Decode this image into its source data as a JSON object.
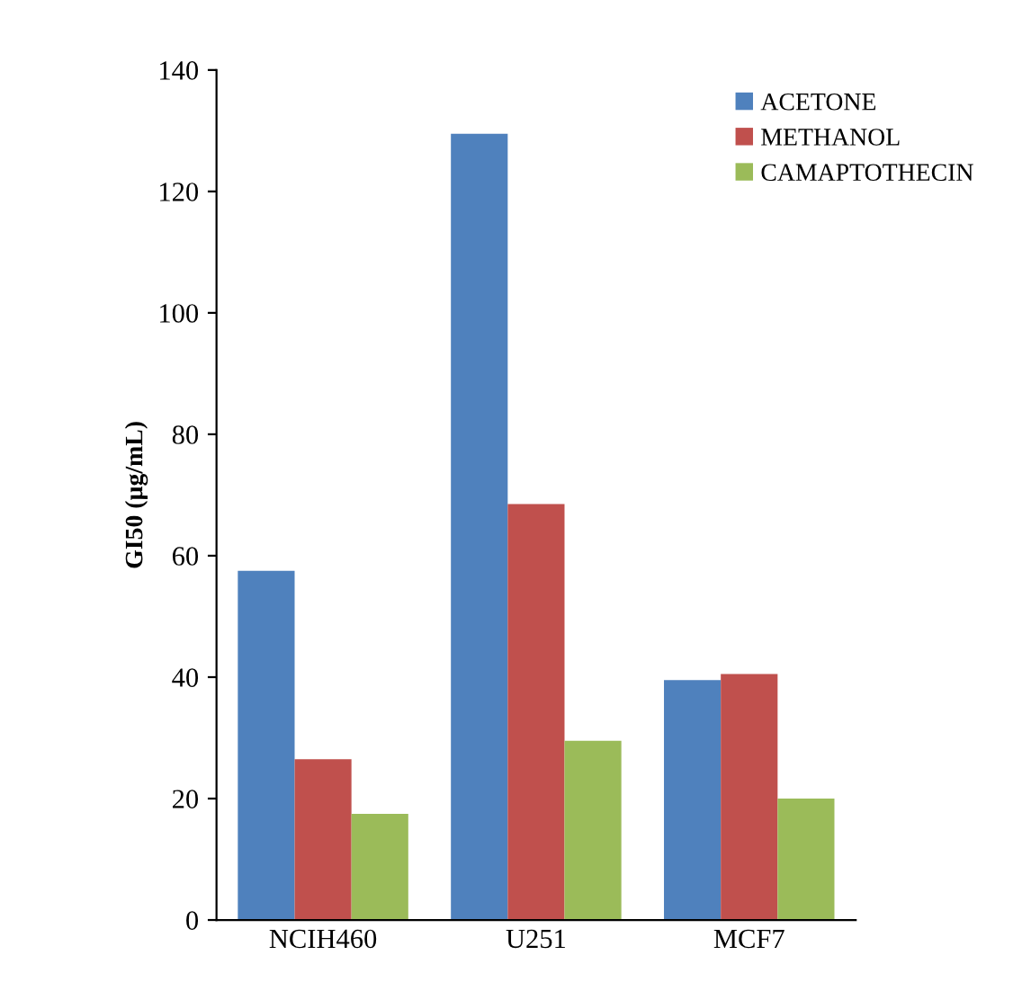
{
  "chart_data": {
    "type": "bar",
    "ylabel": "GI50 (µg/mL)",
    "categories": [
      "NCIH460",
      "U251",
      "MCF7"
    ],
    "series": [
      {
        "name": "ACETONE",
        "color": "#4f81bd",
        "values": [
          57.5,
          129.5,
          39.5
        ]
      },
      {
        "name": "METHANOL",
        "color": "#c0504d",
        "values": [
          26.5,
          68.5,
          40.5
        ]
      },
      {
        "name": "CAMAPTOTHECIN",
        "color": "#9bbb59",
        "values": [
          17.5,
          29.5,
          20
        ]
      }
    ],
    "ylim": [
      0,
      140
    ],
    "yticks": [
      0,
      20,
      40,
      60,
      80,
      100,
      120,
      140
    ],
    "grid": false,
    "legend": "top right"
  }
}
